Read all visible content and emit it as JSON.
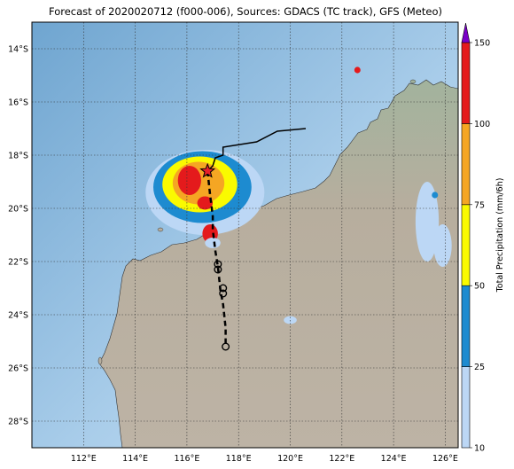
{
  "map": {
    "title": "Forecast of 2020020712 (f000-006), Sources: GDACS (TC track), GFS (Meteo)",
    "lon_range": [
      110,
      126.5
    ],
    "lat_range": [
      -29,
      -13
    ],
    "lat_ticks": [
      {
        "value": -14,
        "label": "14°S"
      },
      {
        "value": -16,
        "label": "16°S"
      },
      {
        "value": -18,
        "label": "18°S"
      },
      {
        "value": -20,
        "label": "20°S"
      },
      {
        "value": -22,
        "label": "22°S"
      },
      {
        "value": -24,
        "label": "24°S"
      },
      {
        "value": -26,
        "label": "26°S"
      },
      {
        "value": -28,
        "label": "28°S"
      }
    ],
    "lon_ticks": [
      {
        "value": 112,
        "label": "112°E"
      },
      {
        "value": 114,
        "label": "114°E"
      },
      {
        "value": 116,
        "label": "116°E"
      },
      {
        "value": 118,
        "label": "118°E"
      },
      {
        "value": 120,
        "label": "120°E"
      },
      {
        "value": 122,
        "label": "122°E"
      },
      {
        "value": 124,
        "label": "124°E"
      },
      {
        "value": 126,
        "label": "126°E"
      }
    ],
    "grid": true,
    "colors": {
      "ocean": "#8ab8da",
      "land": "#b8ad9c",
      "land_green": "#a3b39b",
      "track": "#000000",
      "current_position_marker": "#e8202a"
    },
    "observed_track": [
      [
        120.6,
        -17.0
      ],
      [
        119.5,
        -17.1
      ],
      [
        118.7,
        -17.5
      ],
      [
        117.4,
        -17.7
      ],
      [
        117.4,
        -18.0
      ],
      [
        117.1,
        -18.1
      ],
      [
        117.0,
        -18.4
      ],
      [
        116.8,
        -18.6
      ]
    ],
    "forecast_track": [
      [
        116.8,
        -18.6
      ],
      [
        116.9,
        -19.5
      ],
      [
        117.0,
        -20.3
      ],
      [
        117.0,
        -20.8
      ],
      [
        117.1,
        -21.6
      ],
      [
        117.2,
        -22.2
      ],
      [
        117.3,
        -23.1
      ],
      [
        117.4,
        -23.6
      ],
      [
        117.5,
        -24.5
      ],
      [
        117.5,
        -25.2
      ]
    ],
    "forecast_points": [
      [
        117.2,
        -22.1
      ],
      [
        117.2,
        -22.3
      ],
      [
        117.4,
        -23.0
      ],
      [
        117.4,
        -23.2
      ],
      [
        117.5,
        -25.2
      ]
    ],
    "current_position": [
      116.8,
      -18.6
    ]
  },
  "colorbar": {
    "label": "Total Precipitation (mm/6h)",
    "levels": [
      10,
      25,
      50,
      75,
      100,
      150
    ],
    "tick_labels": [
      "10",
      "25",
      "50",
      "75",
      "100",
      "150"
    ],
    "colors": [
      "#bcd7f5",
      "#1d8bd0",
      "#fafa00",
      "#f5a623",
      "#e41a1c"
    ],
    "extend_color": "#7a00c8"
  },
  "precipitation_cells": [
    {
      "lon": 116.7,
      "lat": -19.4,
      "rx": 2.3,
      "ry": 1.6,
      "level": 0
    },
    {
      "lon": 116.6,
      "lat": -19.2,
      "rx": 1.9,
      "ry": 1.35,
      "level": 1
    },
    {
      "lon": 116.5,
      "lat": -19.1,
      "rx": 1.45,
      "ry": 1.05,
      "level": 2
    },
    {
      "lon": 116.45,
      "lat": -19.05,
      "rx": 1.0,
      "ry": 0.8,
      "level": 3
    },
    {
      "lon": 116.1,
      "lat": -18.95,
      "rx": 0.45,
      "ry": 0.55,
      "level": 4
    },
    {
      "lon": 116.7,
      "lat": -19.8,
      "rx": 0.3,
      "ry": 0.25,
      "level": 4
    },
    {
      "lon": 116.9,
      "lat": -20.95,
      "rx": 0.3,
      "ry": 0.35,
      "level": 4
    },
    {
      "lon": 117.0,
      "lat": -21.3,
      "rx": 0.3,
      "ry": 0.2,
      "level": 0
    },
    {
      "lon": 120.0,
      "lat": -24.2,
      "rx": 0.25,
      "ry": 0.15,
      "level": 0
    },
    {
      "lon": 125.3,
      "lat": -20.5,
      "rx": 0.45,
      "ry": 1.5,
      "level": 0
    },
    {
      "lon": 125.9,
      "lat": -21.4,
      "rx": 0.35,
      "ry": 0.8,
      "level": 0
    },
    {
      "lon": 125.6,
      "lat": -19.5,
      "rx": 0.12,
      "ry": 0.12,
      "level": 1
    },
    {
      "lon": 122.6,
      "lat": -14.8,
      "rx": 0.12,
      "ry": 0.12,
      "level": 4
    }
  ]
}
